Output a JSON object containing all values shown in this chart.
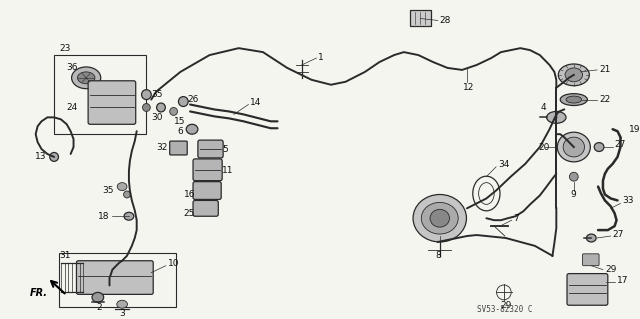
{
  "background_color": "#f5f5f0",
  "diagram_code": "SV53-82320 C",
  "fig_width": 6.4,
  "fig_height": 3.19,
  "dpi": 100,
  "lw_pipe": 1.4,
  "lw_part": 0.9,
  "lw_thin": 0.6,
  "part_color": "#383838",
  "label_fontsize": 6.5,
  "text_color": "#111111",
  "pipe_color": "#2a2a2a"
}
